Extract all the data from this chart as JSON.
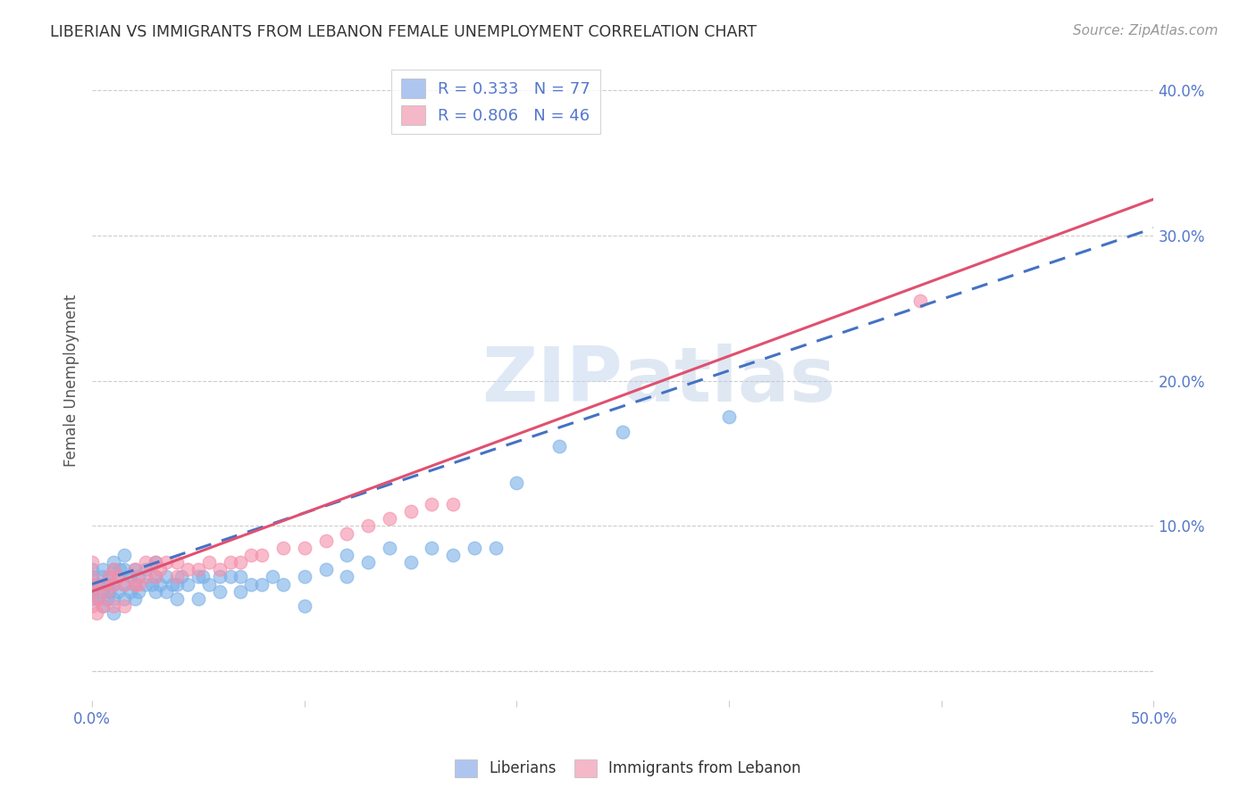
{
  "title": "LIBERIAN VS IMMIGRANTS FROM LEBANON FEMALE UNEMPLOYMENT CORRELATION CHART",
  "source": "Source: ZipAtlas.com",
  "ylabel": "Female Unemployment",
  "xlim": [
    0.0,
    0.5
  ],
  "ylim": [
    -0.02,
    0.42
  ],
  "x_ticks": [
    0.0,
    0.1,
    0.2,
    0.3,
    0.4,
    0.5
  ],
  "x_tick_labels": [
    "0.0%",
    "",
    "",
    "",
    "",
    "50.0%"
  ],
  "y_ticks": [
    0.0,
    0.1,
    0.2,
    0.3,
    0.4
  ],
  "y_tick_labels": [
    "",
    "10.0%",
    "20.0%",
    "30.0%",
    "40.0%"
  ],
  "legend_label1": "R = 0.333   N = 77",
  "legend_label2": "R = 0.806   N = 46",
  "legend_color1": "#aec6ef",
  "legend_color2": "#f4b8c8",
  "watermark": "ZIPAtlas",
  "liberian_color": "#7ab0e8",
  "lebanon_color": "#f48faa",
  "trendline1_color": "#4472c4",
  "trendline2_color": "#e05070",
  "background_color": "#ffffff",
  "grid_color": "#cccccc",
  "tick_color": "#5577cc",
  "lib_x": [
    0.0,
    0.0,
    0.0,
    0.0,
    0.0,
    0.003,
    0.003,
    0.005,
    0.005,
    0.005,
    0.005,
    0.007,
    0.007,
    0.008,
    0.008,
    0.01,
    0.01,
    0.01,
    0.01,
    0.01,
    0.012,
    0.012,
    0.013,
    0.015,
    0.015,
    0.015,
    0.015,
    0.018,
    0.018,
    0.02,
    0.02,
    0.02,
    0.022,
    0.022,
    0.025,
    0.025,
    0.028,
    0.03,
    0.03,
    0.03,
    0.032,
    0.035,
    0.035,
    0.038,
    0.04,
    0.04,
    0.042,
    0.045,
    0.05,
    0.05,
    0.052,
    0.055,
    0.06,
    0.06,
    0.065,
    0.07,
    0.07,
    0.075,
    0.08,
    0.085,
    0.09,
    0.1,
    0.1,
    0.11,
    0.12,
    0.12,
    0.13,
    0.14,
    0.15,
    0.16,
    0.17,
    0.18,
    0.19,
    0.2,
    0.22,
    0.25,
    0.3
  ],
  "lib_y": [
    0.05,
    0.06,
    0.07,
    0.055,
    0.065,
    0.05,
    0.06,
    0.045,
    0.055,
    0.065,
    0.07,
    0.05,
    0.06,
    0.055,
    0.065,
    0.04,
    0.05,
    0.06,
    0.07,
    0.075,
    0.055,
    0.065,
    0.07,
    0.05,
    0.06,
    0.07,
    0.08,
    0.055,
    0.065,
    0.05,
    0.06,
    0.07,
    0.055,
    0.065,
    0.06,
    0.07,
    0.06,
    0.055,
    0.065,
    0.075,
    0.06,
    0.055,
    0.065,
    0.06,
    0.05,
    0.06,
    0.065,
    0.06,
    0.05,
    0.065,
    0.065,
    0.06,
    0.055,
    0.065,
    0.065,
    0.055,
    0.065,
    0.06,
    0.06,
    0.065,
    0.06,
    0.045,
    0.065,
    0.07,
    0.065,
    0.08,
    0.075,
    0.085,
    0.075,
    0.085,
    0.08,
    0.085,
    0.085,
    0.13,
    0.155,
    0.165,
    0.175
  ],
  "leb_x": [
    0.0,
    0.0,
    0.0,
    0.0,
    0.0,
    0.002,
    0.003,
    0.005,
    0.005,
    0.007,
    0.008,
    0.01,
    0.01,
    0.01,
    0.012,
    0.015,
    0.015,
    0.02,
    0.02,
    0.022,
    0.025,
    0.025,
    0.03,
    0.03,
    0.032,
    0.035,
    0.04,
    0.04,
    0.045,
    0.05,
    0.055,
    0.06,
    0.065,
    0.07,
    0.075,
    0.08,
    0.09,
    0.1,
    0.11,
    0.12,
    0.13,
    0.14,
    0.15,
    0.16,
    0.17,
    0.39
  ],
  "leb_y": [
    0.045,
    0.055,
    0.06,
    0.065,
    0.075,
    0.04,
    0.05,
    0.045,
    0.06,
    0.055,
    0.065,
    0.045,
    0.06,
    0.07,
    0.065,
    0.045,
    0.06,
    0.06,
    0.07,
    0.06,
    0.065,
    0.075,
    0.065,
    0.075,
    0.07,
    0.075,
    0.065,
    0.075,
    0.07,
    0.07,
    0.075,
    0.07,
    0.075,
    0.075,
    0.08,
    0.08,
    0.085,
    0.085,
    0.09,
    0.095,
    0.1,
    0.105,
    0.11,
    0.115,
    0.115,
    0.255
  ],
  "trendline1_x": [
    0.0,
    0.5
  ],
  "trendline1_y": [
    0.06,
    0.305
  ],
  "trendline2_x": [
    0.0,
    0.5
  ],
  "trendline2_y": [
    0.055,
    0.325
  ]
}
